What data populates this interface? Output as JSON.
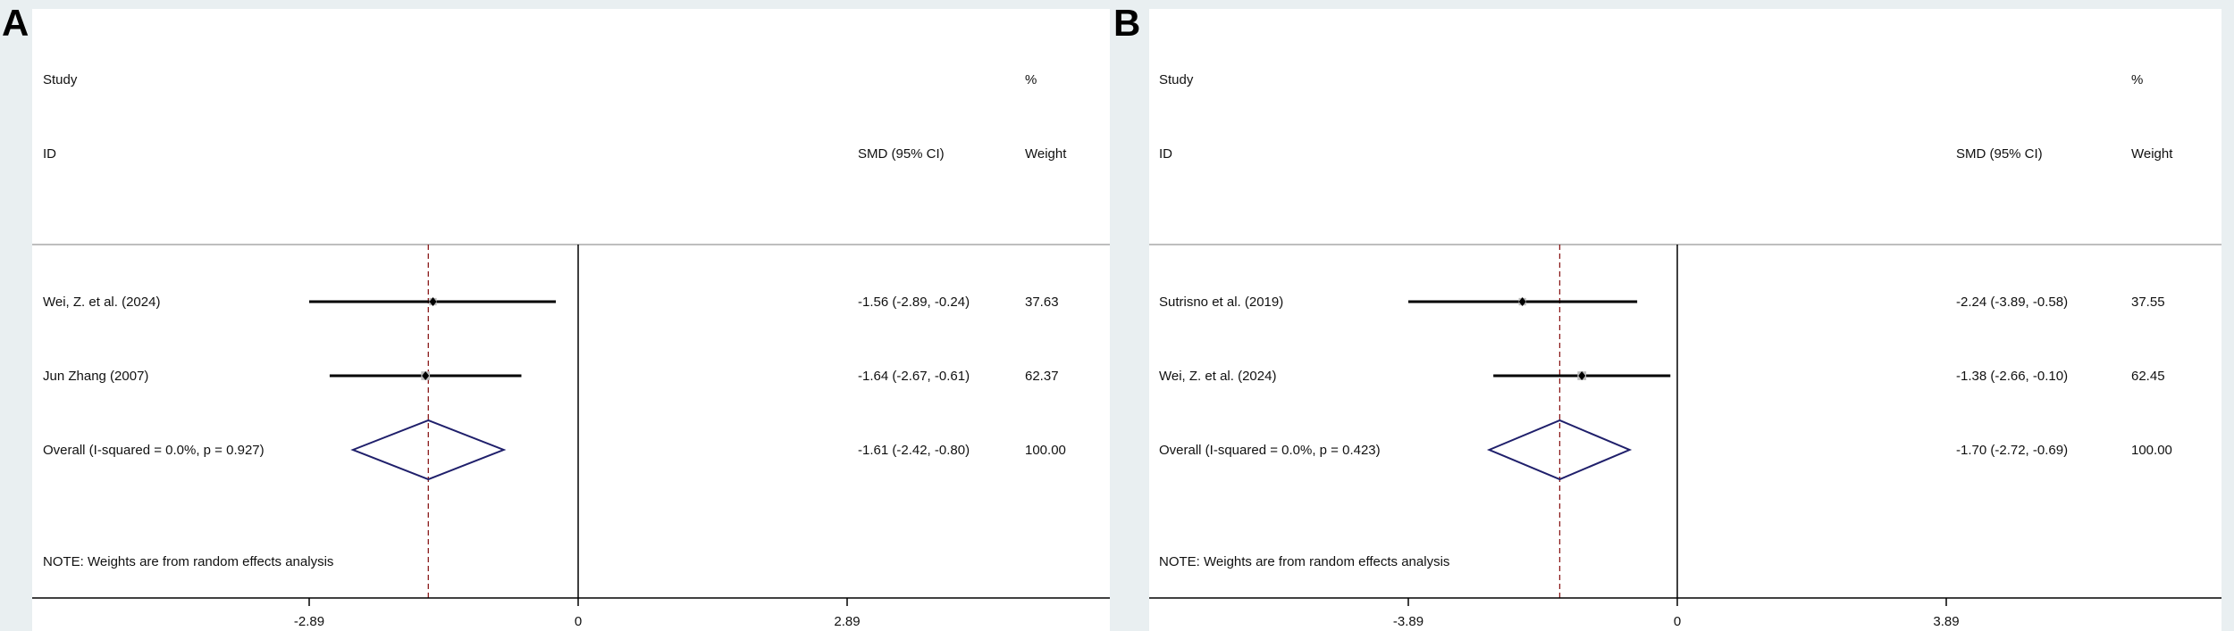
{
  "chart_data": [
    {
      "type": "forest",
      "panel_label": "A",
      "headers": {
        "study": "Study",
        "id": "ID",
        "effect": "SMD (95% CI)",
        "pct": "%",
        "weight": "Weight"
      },
      "studies": [
        {
          "name": "Wei, Z. et al. (2024)",
          "smd": -1.56,
          "lo": -2.89,
          "hi": -0.24,
          "ci_text": "-1.56 (-2.89, -0.24)",
          "weight": "37.63"
        },
        {
          "name": "Jun Zhang (2007)",
          "smd": -1.64,
          "lo": -2.67,
          "hi": -0.61,
          "ci_text": "-1.64 (-2.67, -0.61)",
          "weight": "62.37"
        }
      ],
      "overall": {
        "label": "Overall  (I-squared = 0.0%, p = 0.927)",
        "smd": -1.61,
        "lo": -2.42,
        "hi": -0.8,
        "ci_text": "-1.61 (-2.42, -0.80)",
        "weight": "100.00"
      },
      "note": "NOTE: Weights are from random effects analysis",
      "xticks": [
        -2.89,
        0,
        2.89
      ],
      "xtick_labels": [
        "-2.89",
        "0",
        "2.89"
      ],
      "xlim": [
        -3.8,
        3.8
      ]
    },
    {
      "type": "forest",
      "panel_label": "B",
      "headers": {
        "study": "Study",
        "id": "ID",
        "effect": "SMD (95% CI)",
        "pct": "%",
        "weight": "Weight"
      },
      "studies": [
        {
          "name": "Sutrisno et al. (2019)",
          "smd": -2.24,
          "lo": -3.89,
          "hi": -0.58,
          "ci_text": "-2.24 (-3.89, -0.58)",
          "weight": "37.55"
        },
        {
          "name": "Wei, Z. et al. (2024)",
          "smd": -1.38,
          "lo": -2.66,
          "hi": -0.1,
          "ci_text": "-1.38 (-2.66, -0.10)",
          "weight": "62.45"
        }
      ],
      "overall": {
        "label": "Overall  (I-squared = 0.0%, p = 0.423)",
        "smd": -1.7,
        "lo": -2.72,
        "hi": -0.69,
        "ci_text": "-1.70 (-2.72, -0.69)",
        "weight": "100.00"
      },
      "note": "NOTE: Weights are from random effects analysis",
      "xticks": [
        -3.89,
        0,
        3.89
      ],
      "xtick_labels": [
        "-3.89",
        "0",
        "3.89"
      ],
      "xlim": [
        -7.5,
        7.5
      ]
    }
  ],
  "colors": {
    "diamond": "#1f1f6b",
    "null_line": "#000000",
    "overall_line": "#8b1a1a",
    "weight_box": "#bdbdbd"
  }
}
